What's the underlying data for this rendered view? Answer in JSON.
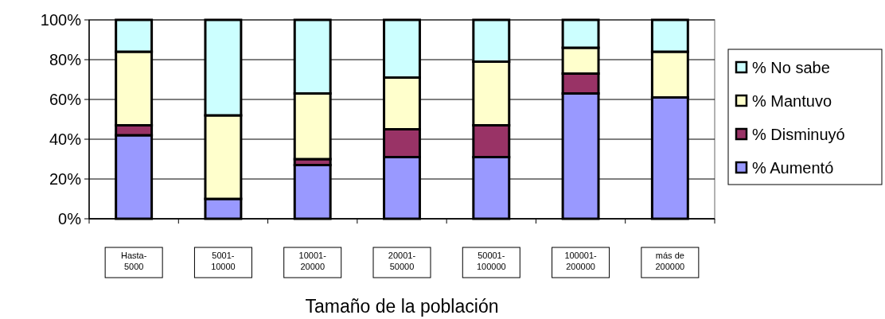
{
  "chart_data": {
    "type": "bar",
    "stacked": true,
    "xlabel": "Tamaño de la población",
    "categories": [
      "Hasta-\n5000",
      "5001-\n10000",
      "10001-\n20000",
      "20001-\n50000",
      "50001-\n100000",
      "100001-\n200000",
      "más de\n200000"
    ],
    "series": [
      {
        "name": "% Aumentó",
        "color": "#9999ff",
        "values": [
          42,
          10,
          27,
          31,
          31,
          63,
          61
        ]
      },
      {
        "name": "% Disminuyó",
        "color": "#993366",
        "values": [
          5,
          0,
          3,
          14,
          16,
          10,
          0
        ]
      },
      {
        "name": "% Mantuvo",
        "color": "#ffffcc",
        "values": [
          37,
          42,
          33,
          26,
          32,
          13,
          23
        ]
      },
      {
        "name": "% No sabe",
        "color": "#ccffff",
        "values": [
          16,
          48,
          37,
          29,
          21,
          14,
          16
        ]
      }
    ],
    "ylim": [
      0,
      100
    ],
    "yticks": [
      {
        "value": 0,
        "label": "0%"
      },
      {
        "value": 20,
        "label": "20%"
      },
      {
        "value": 40,
        "label": "40%"
      },
      {
        "value": 60,
        "label": "60%"
      },
      {
        "value": 80,
        "label": "80%"
      },
      {
        "value": 100,
        "label": "100%"
      }
    ],
    "grid": "y",
    "legend": "right"
  }
}
